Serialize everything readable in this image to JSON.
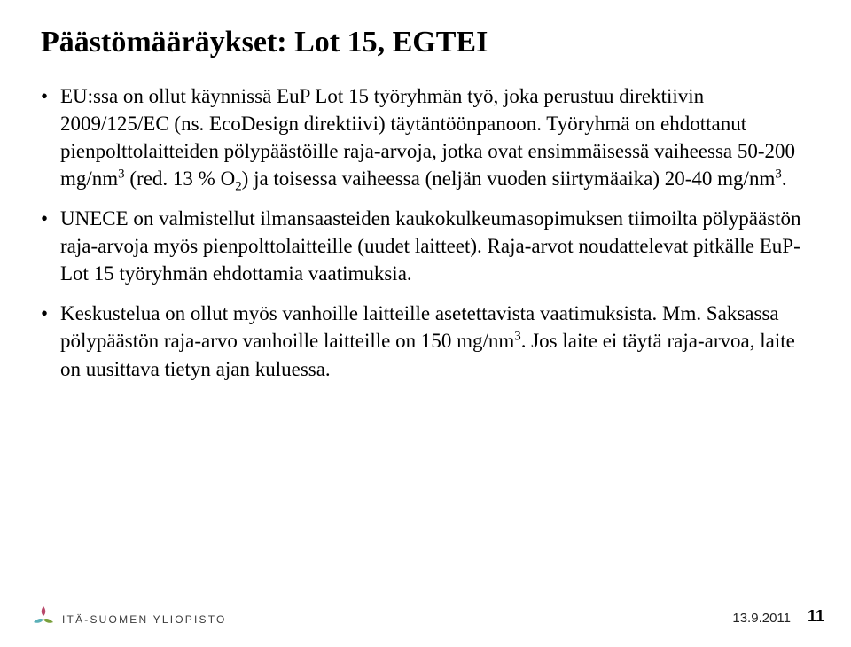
{
  "title": "Päästömääräykset: Lot 15, EGTEI",
  "bullets": [
    "EU:ssa on ollut käynnissä EuP Lot 15 työryhmän työ, joka perustuu direktiivin 2009/125/EC (ns. EcoDesign direktiivi) täytäntöönpanoon. Työryhmä on ehdottanut pienpolttolaitteiden pölypäästöille raja-arvoja, jotka ovat ensimmäisessä vaiheessa 50-200 mg/nm<sup>3</sup> (red. 13 % O<sub>2</sub>) ja toisessa vaiheessa (neljän vuoden siirtymäaika) 20-40 mg/nm<sup>3</sup>.",
    "UNECE on valmistellut ilmansaasteiden kaukokulkeumasopimuksen tiimoilta pölypäästön raja-arvoja myös pienpolttolaitteille (uudet laitteet). Raja-arvot noudattelevat pitkälle EuP-Lot 15 työryhmän ehdottamia vaatimuksia.",
    "Keskustelua on ollut myös vanhoille laitteille asetettavista vaatimuksista. Mm. Saksassa pölypäästön raja-arvo vanhoille laitteille on 150 mg/nm<sup>3</sup>. Jos laite ei täytä raja-arvoa, laite on uusittava tietyn ajan kuluessa."
  ],
  "footer": {
    "org": "ITÄ-SUOMEN YLIOPISTO",
    "date": "13.9.2011",
    "page": "11"
  },
  "colors": {
    "text": "#000000",
    "bg": "#ffffff",
    "logo_top": "#b8486a",
    "logo_left": "#5bb0b8",
    "logo_right": "#7aa03c",
    "footer_text": "#3a3a3a"
  }
}
